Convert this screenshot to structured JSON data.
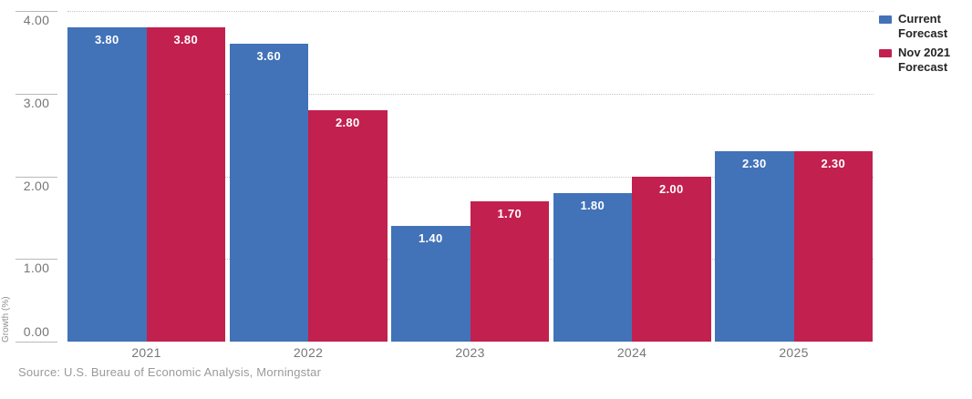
{
  "chart_data": {
    "type": "bar",
    "title": "",
    "xlabel": "",
    "ylabel": "Growth (%)",
    "ylim": [
      0,
      4
    ],
    "ytick_values": [
      0,
      1,
      2,
      3,
      4
    ],
    "ytick_labels": [
      "0.00",
      "1.00",
      "2.00",
      "3.00",
      "4.00"
    ],
    "grid": "horizontal-dotted",
    "legend_position": "top-right",
    "categories": [
      "2021",
      "2022",
      "2023",
      "2024",
      "2025"
    ],
    "series": [
      {
        "name": "Current Forecast",
        "color": "#4272b8",
        "values": [
          3.8,
          3.6,
          1.4,
          1.8,
          2.3
        ],
        "value_labels": [
          "3.80",
          "3.60",
          "1.40",
          "1.80",
          "2.30"
        ]
      },
      {
        "name": "Nov 2021 Forecast",
        "color": "#c2204f",
        "values": [
          3.8,
          2.8,
          1.7,
          2.0,
          2.3
        ],
        "value_labels": [
          "3.80",
          "2.80",
          "1.70",
          "2.00",
          "2.30"
        ]
      }
    ]
  },
  "footer": {
    "source": "Source: U.S. Bureau of Economic Analysis, Morningstar"
  },
  "colors": {
    "series_blue": "#4272b8",
    "series_crimson": "#c2204f",
    "gridline": "#c6c6c6",
    "axis_text": "#767676",
    "legend_text": "#262626",
    "source_text": "#9a9a9a",
    "bar_value_text": "#ffffff"
  }
}
